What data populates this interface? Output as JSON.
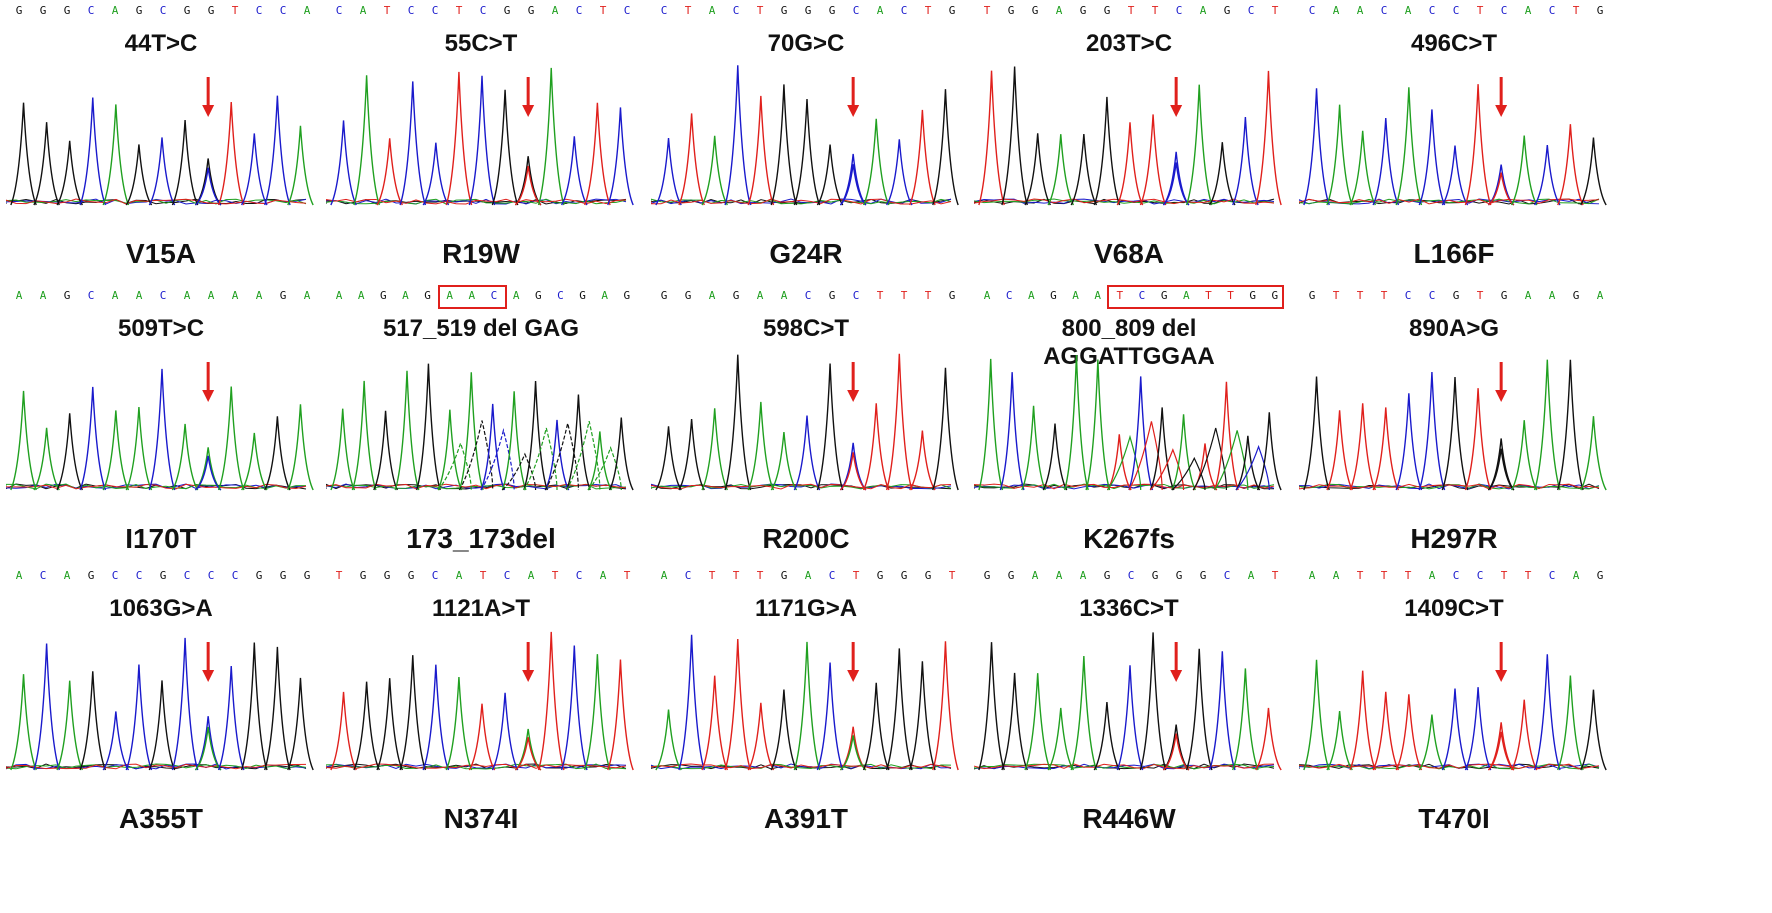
{
  "colors": {
    "A": "#20a020",
    "C": "#1a1acc",
    "G": "#111111",
    "T": "#e0201c",
    "arrow": "#e0201c"
  },
  "panels": [
    {
      "seq": "GGGCAGCGGTCCA",
      "mutation": "44T>C",
      "aa": "V15A",
      "het_base": "C",
      "het_pos": 8,
      "deletion_box": null
    },
    {
      "seq": "CATCCTCGGACTC",
      "mutation": "55C>T",
      "aa": "R19W",
      "het_base": "T",
      "het_pos": 8,
      "deletion_box": null
    },
    {
      "seq": "CTACTGGGCACTG",
      "mutation": "70G>C",
      "aa": "G24R",
      "het_base": "C",
      "het_pos": 8,
      "deletion_box": null
    },
    {
      "seq": "TGGAGGTTCAGCT",
      "mutation": "203T>C",
      "aa": "V68A",
      "het_base": "C",
      "het_pos": 8,
      "deletion_box": null
    },
    {
      "seq": "CAACACCTCACTG",
      "mutation": "496C>T",
      "aa": "L166F",
      "het_base": "T",
      "het_pos": 8,
      "deletion_box": null
    },
    {
      "seq": "AAGCAACAAAAGA",
      "mutation": "509T>C",
      "aa": "I170T",
      "het_base": "C",
      "het_pos": 8,
      "deletion_box": null
    },
    {
      "seq": "AAGAGAACAGCGAG",
      "mutation": "517_519 del GAG",
      "aa": "173_173del",
      "het_base": null,
      "het_pos": null,
      "deletion_box": [
        5,
        7
      ]
    },
    {
      "seq": "GGAGAACGCTTTG",
      "mutation": "598C>T",
      "aa": "R200C",
      "het_base": "T",
      "het_pos": 8,
      "deletion_box": null
    },
    {
      "seq": "ACAGAATCGATTGG",
      "mutation": "800_809 del AGGATTGGAA",
      "aa": "K267fs",
      "het_base": null,
      "het_pos": null,
      "deletion_box": [
        6,
        13
      ]
    },
    {
      "seq": "GTTTCCGTGAAGA",
      "mutation": "890A>G",
      "aa": "H297R",
      "het_base": "G",
      "het_pos": 8,
      "deletion_box": null
    },
    {
      "seq": "ACAGCCGCCCGGG",
      "mutation": "1063G>A",
      "aa": "A355T",
      "het_base": "A",
      "het_pos": 8,
      "deletion_box": null
    },
    {
      "seq": "TGGGCATCATCAT",
      "mutation": "1121A>T",
      "aa": "N374I",
      "het_base": "T",
      "het_pos": 8,
      "deletion_box": null
    },
    {
      "seq": "ACTTTGACTGGGT",
      "mutation": "1171G>A",
      "aa": "A391T",
      "het_base": "A",
      "het_pos": 8,
      "deletion_box": null
    },
    {
      "seq": "GGAAAGCGGGCAT",
      "mutation": "1336C>T",
      "aa": "R446W",
      "het_base": "T",
      "het_pos": 8,
      "deletion_box": null
    },
    {
      "seq": "AATTTACCTTCAG",
      "mutation": "1409C>T",
      "aa": "T470I",
      "het_base": "T",
      "het_pos": 8,
      "deletion_box": null
    }
  ]
}
